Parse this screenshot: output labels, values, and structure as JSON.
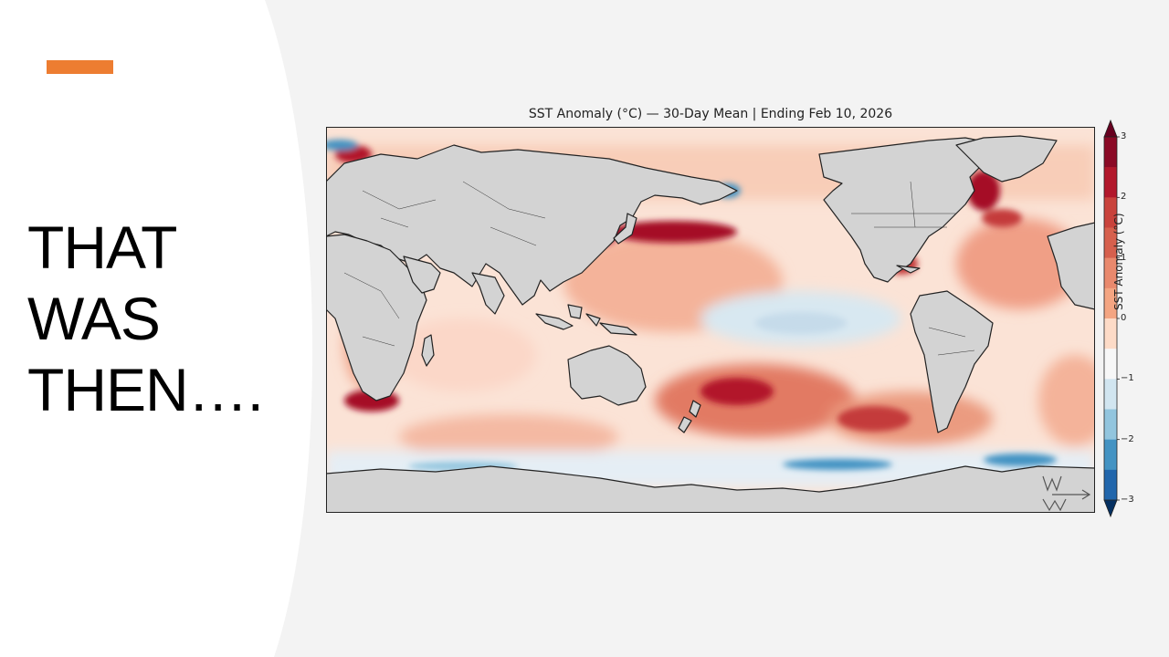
{
  "slide": {
    "title": "THAT\nWAS\nTHEN….",
    "accent_color": "#ed7d31"
  },
  "map": {
    "title": "SST Anomaly (°C) — 30-Day Mean | Ending Feb 10, 2026",
    "projection": "equirectangular, Pacific-centered",
    "land_color": "#d3d3d3",
    "watermark_text": "Mekons Weather"
  },
  "colorbar": {
    "label": "SST Anomaly (°C)",
    "ticks": [
      "3",
      "2",
      "1",
      "0",
      "−1",
      "−2",
      "−3"
    ],
    "colors": [
      "#67001f",
      "#b2182b",
      "#d6604d",
      "#f4a582",
      "#fddbc7",
      "#f7f7f7",
      "#d1e5f0",
      "#92c5de",
      "#4393c3",
      "#2166ac",
      "#053061"
    ]
  }
}
